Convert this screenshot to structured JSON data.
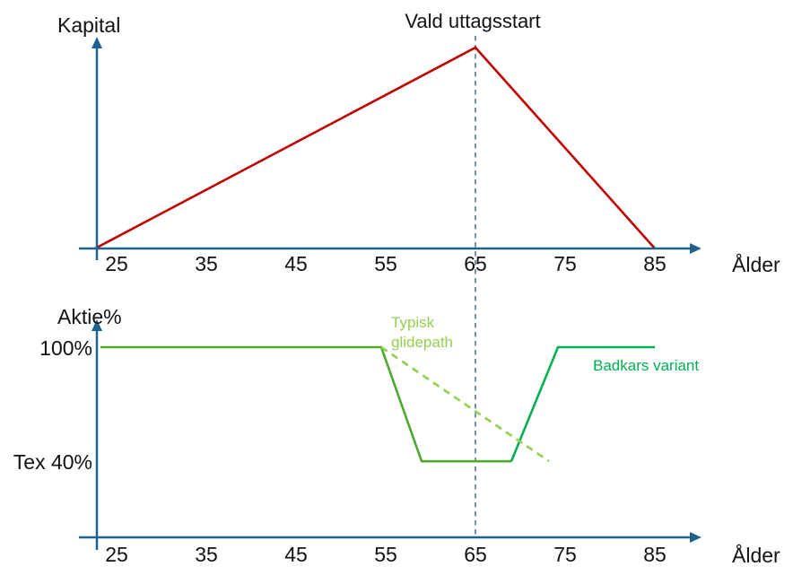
{
  "page": {
    "description": "Two stacked schematic line charts about pension capital and equity allocation over age",
    "background_color": "#FFFFFF",
    "axis_color": "#1F628D",
    "reference_line_color": "#41719C"
  },
  "chart_data": [
    {
      "type": "line",
      "title": "",
      "xlabel": "Ålder",
      "ylabel": "Kapital",
      "x_ticks": [
        25,
        35,
        45,
        55,
        65,
        75,
        85
      ],
      "x_range": [
        21,
        90
      ],
      "ylim": [
        0,
        110
      ],
      "grid": false,
      "annotation": {
        "label": "Vald uttagsstart",
        "x": 65,
        "style": "vertical-dashed-line",
        "color": "#41719C"
      },
      "series": [
        {
          "name": "kapital-curve",
          "label": "",
          "color": "#C00000",
          "style": "solid",
          "points": [
            [
              22.6,
              0
            ],
            [
              65,
              100
            ],
            [
              85,
              0
            ]
          ]
        }
      ]
    },
    {
      "type": "line",
      "title": "",
      "xlabel": "Ålder",
      "ylabel": "Aktie%",
      "x_ticks": [
        25,
        35,
        45,
        55,
        65,
        75,
        85
      ],
      "x_range": [
        21,
        90
      ],
      "ylim": [
        0,
        110
      ],
      "grid": false,
      "y_tick_labels": [
        {
          "value": 100,
          "label": "100%"
        },
        {
          "value": 40,
          "label": "Tex 40%"
        }
      ],
      "series": [
        {
          "name": "badkars-variant-pre",
          "label": "",
          "color": "#4EA72E",
          "style": "solid",
          "points": [
            [
              23.2,
              100
            ],
            [
              54.5,
              100
            ],
            [
              59,
              40
            ],
            [
              69,
              40
            ]
          ]
        },
        {
          "name": "badkars-variant",
          "label": "Badkars variant",
          "color": "#00B050",
          "style": "solid",
          "points": [
            [
              69,
              40
            ],
            [
              74.2,
              100
            ],
            [
              85,
              100
            ]
          ]
        },
        {
          "name": "typisk-glidepath",
          "label": "Typisk glidepath",
          "color": "#92D050",
          "style": "dashed",
          "points": [
            [
              54.5,
              100
            ],
            [
              73.2,
              40
            ]
          ]
        }
      ]
    }
  ]
}
